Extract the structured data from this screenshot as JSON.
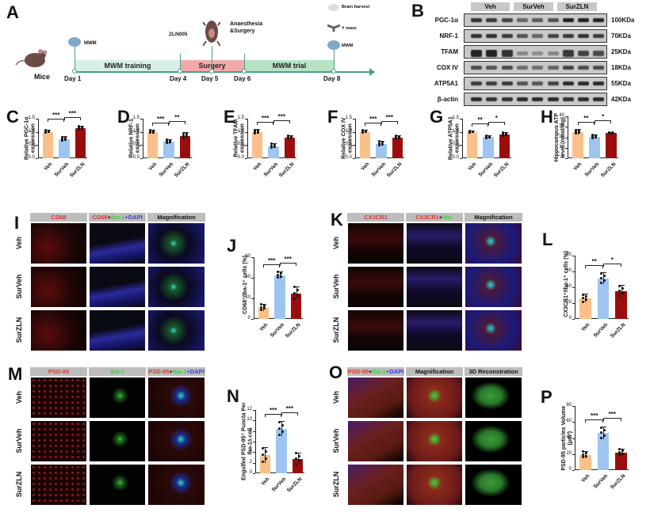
{
  "panels": {
    "A": {
      "label": "A",
      "subject": "Mice",
      "segments": [
        {
          "label": "MWM training",
          "color": "#d6efe9"
        },
        {
          "label": "Surgery",
          "color": "#f4a9a9"
        },
        {
          "label": "MWM trial",
          "color": "#b7e3c5"
        }
      ],
      "days": [
        "Day 1",
        "Day 4",
        "Day 5",
        "Day 6",
        "Day 8"
      ],
      "annotations": {
        "mwm_start": "MWM",
        "drug": "ZLN005",
        "procedure": "Anaesthesia\n&Surgery",
        "brain": "Brain harvest",
        "ymaze": "Y maze",
        "mwm_end": "MWM"
      },
      "axis_color": "#4aa08a"
    },
    "B": {
      "label": "B",
      "groups": [
        "Veh",
        "SurVeh",
        "SurZLN"
      ],
      "proteins": [
        {
          "name": "PGC-1α",
          "kda": "100KDa"
        },
        {
          "name": "NRF-1",
          "kda": "70KDa"
        },
        {
          "name": "TFAM",
          "kda": "25KDa"
        },
        {
          "name": "COX IV",
          "kda": "18KDa"
        },
        {
          "name": "ATP5A1",
          "kda": "55KDa"
        },
        {
          "name": "β-actin",
          "kda": "42KDa"
        }
      ]
    },
    "I": {
      "label": "I",
      "headers": {
        "c1": "CD68",
        "c2a": "CD68",
        "c2b": "+",
        "c2c": "Iba-1",
        "c2d": "+DAPI",
        "c3": "Magnification"
      },
      "rows": [
        "Veh",
        "SurVeh",
        "SurZLN"
      ],
      "scale": "50 μm"
    },
    "K": {
      "label": "K",
      "headers": {
        "c1": "CX3CR1",
        "c2a": "CX3CR1",
        "c2b": "+",
        "c2c": "Iba-1",
        "c2d": "+DAPI",
        "c3": "Magnification"
      },
      "rows": [
        "Veh",
        "SurVeh",
        "SurZLN"
      ],
      "scale": "50 μm"
    },
    "M": {
      "label": "M",
      "headers": {
        "c1": "PSD-95",
        "c2": "Iba-1",
        "c3a": "PSD-95",
        "c3b": "+",
        "c3c": "Iba-1",
        "c3d": "+DAPI"
      },
      "rows": [
        "Veh",
        "SurVeh",
        "SurZLN"
      ],
      "scale": "10μm"
    },
    "O": {
      "label": "O",
      "headers": {
        "c1a": "PSD-95",
        "c1b": "+",
        "c1c": "Iba-1",
        "c1d": "+DAPI",
        "c2": "Magnification",
        "c3": "3D Reconstration"
      },
      "rows": [
        "Veh",
        "SurVeh",
        "SurZLN"
      ],
      "scale": "10μm"
    }
  },
  "colors": {
    "Veh": "#fbc08a",
    "SurVeh": "#9ec5f2",
    "SurZLN": "#9b0d0d"
  },
  "chart_data": [
    {
      "panel": "C",
      "type": "bar",
      "categories": [
        "Veh",
        "SurVeh",
        "SurZLN"
      ],
      "values": [
        1.0,
        0.73,
        1.14
      ],
      "errors": [
        0.05,
        0.07,
        0.06
      ],
      "ylabel": "Relative PGC-1α expression",
      "ylim": [
        0,
        1.5
      ],
      "yticks": [
        "0.0",
        "0.5",
        "1.0",
        "1.5"
      ],
      "significance": [
        {
          "pair": [
            "Veh",
            "SurVeh"
          ],
          "mark": "***"
        },
        {
          "pair": [
            "SurVeh",
            "SurZLN"
          ],
          "mark": "***"
        }
      ]
    },
    {
      "panel": "D",
      "type": "bar",
      "categories": [
        "Veh",
        "SurVeh",
        "SurZLN"
      ],
      "values": [
        1.0,
        0.62,
        0.85
      ],
      "errors": [
        0.06,
        0.07,
        0.1
      ],
      "ylabel": "Relative NRF-1 expression",
      "ylim": [
        0,
        1.5
      ],
      "yticks": [
        "0.0",
        "0.5",
        "1.0",
        "1.5"
      ],
      "significance": [
        {
          "pair": [
            "Veh",
            "SurVeh"
          ],
          "mark": "***"
        },
        {
          "pair": [
            "SurVeh",
            "SurZLN"
          ],
          "mark": "**"
        }
      ]
    },
    {
      "panel": "E",
      "type": "bar",
      "categories": [
        "Veh",
        "SurVeh",
        "SurZLN"
      ],
      "values": [
        1.0,
        0.46,
        0.79
      ],
      "errors": [
        0.07,
        0.08,
        0.05
      ],
      "ylabel": "Relative TFAM expression",
      "ylim": [
        0,
        1.5
      ],
      "yticks": [
        "0.0",
        "0.5",
        "1.0",
        "1.5"
      ],
      "significance": [
        {
          "pair": [
            "Veh",
            "SurVeh"
          ],
          "mark": "***"
        },
        {
          "pair": [
            "SurVeh",
            "SurZLN"
          ],
          "mark": "***"
        }
      ]
    },
    {
      "panel": "F",
      "type": "bar",
      "categories": [
        "Veh",
        "SurVeh",
        "SurZLN"
      ],
      "values": [
        1.0,
        0.55,
        0.78
      ],
      "errors": [
        0.05,
        0.08,
        0.07
      ],
      "ylabel": "Relative COX IV expression",
      "ylim": [
        0,
        1.5
      ],
      "yticks": [
        "0.0",
        "0.5",
        "1.0",
        "1.5"
      ],
      "significance": [
        {
          "pair": [
            "Veh",
            "SurVeh"
          ],
          "mark": "***"
        },
        {
          "pair": [
            "SurVeh",
            "SurZLN"
          ],
          "mark": "***"
        }
      ]
    },
    {
      "panel": "G",
      "type": "bar",
      "categories": [
        "Veh",
        "SurVeh",
        "SurZLN"
      ],
      "values": [
        0.99,
        0.8,
        0.9
      ],
      "errors": [
        0.03,
        0.05,
        0.06
      ],
      "ylabel": "Relative ATP5A1 expression",
      "ylim": [
        0,
        1.5
      ],
      "yticks": [
        "0.0",
        "0.5",
        "1.0",
        "1.5"
      ],
      "significance": [
        {
          "pair": [
            "Veh",
            "SurVeh"
          ],
          "mark": "**"
        },
        {
          "pair": [
            "SurVeh",
            "SurZLN"
          ],
          "mark": "*"
        }
      ]
    },
    {
      "panel": "H",
      "type": "bar",
      "categories": [
        "Veh",
        "SurVeh",
        "SurZLN"
      ],
      "values": [
        25,
        20.5,
        23.8
      ],
      "errors": [
        2,
        1.5,
        0.5
      ],
      "ylabel": "Hippocampus ATP level (nmol/mg)",
      "ylim": [
        0,
        40
      ],
      "yticks": [
        "0",
        "10",
        "20",
        "30",
        "40"
      ],
      "significance": [
        {
          "pair": [
            "Veh",
            "SurVeh"
          ],
          "mark": "**"
        },
        {
          "pair": [
            "SurVeh",
            "SurZLN"
          ],
          "mark": "*"
        }
      ]
    },
    {
      "panel": "J",
      "type": "bar",
      "categories": [
        "Veh",
        "SurVeh",
        "SurZLN"
      ],
      "values": [
        11,
        42.5,
        25
      ],
      "errors": [
        3,
        3,
        6
      ],
      "ylabel": "CD68⁺/Iba-1⁺ cells (%)",
      "ylim": [
        0,
        60
      ],
      "yticks": [
        "0",
        "20",
        "40",
        "60"
      ],
      "significance": [
        {
          "pair": [
            "Veh",
            "SurVeh"
          ],
          "mark": "***"
        },
        {
          "pair": [
            "SurVeh",
            "SurZLN"
          ],
          "mark": "***"
        }
      ]
    },
    {
      "panel": "L",
      "type": "bar",
      "categories": [
        "Veh",
        "SurVeh",
        "SurZLN"
      ],
      "values": [
        26,
        51,
        35
      ],
      "errors": [
        5,
        7,
        7
      ],
      "ylabel": "CX3CR1⁺/Iba-1⁺ cells (%)",
      "ylim": [
        0,
        80
      ],
      "yticks": [
        "0",
        "20",
        "40",
        "60",
        "80"
      ],
      "significance": [
        {
          "pair": [
            "Veh",
            "SurVeh"
          ],
          "mark": "**"
        },
        {
          "pair": [
            "SurVeh",
            "SurZLN"
          ],
          "mark": "*"
        }
      ]
    },
    {
      "panel": "N",
      "type": "bar",
      "categories": [
        "Veh",
        "SurVeh",
        "SurZLN"
      ],
      "values": [
        3.4,
        8.4,
        2.7
      ],
      "errors": [
        1.4,
        1.4,
        1.1
      ],
      "ylabel": "Engulfed PSD-95⁺ Puncta Per Iba-1⁺ cell",
      "ylim": [
        0,
        12
      ],
      "yticks": [
        "0",
        "2",
        "4",
        "6",
        "8",
        "10",
        "12"
      ],
      "significance": [
        {
          "pair": [
            "Veh",
            "SurVeh"
          ],
          "mark": "***"
        },
        {
          "pair": [
            "SurVeh",
            "SurZLN"
          ],
          "mark": "***"
        }
      ]
    },
    {
      "panel": "P",
      "type": "bar",
      "categories": [
        "Veh",
        "SurVeh",
        "SurZLN"
      ],
      "values": [
        19,
        46,
        22
      ],
      "errors": [
        4,
        7,
        4
      ],
      "ylabel": "PSD-95 particles Volume (μm³)",
      "ylim": [
        0,
        80
      ],
      "yticks": [
        "0",
        "20",
        "40",
        "60",
        "80"
      ],
      "significance": [
        {
          "pair": [
            "Veh",
            "SurVeh"
          ],
          "mark": "***"
        },
        {
          "pair": [
            "SurVeh",
            "SurZLN"
          ],
          "mark": "***"
        }
      ]
    }
  ]
}
